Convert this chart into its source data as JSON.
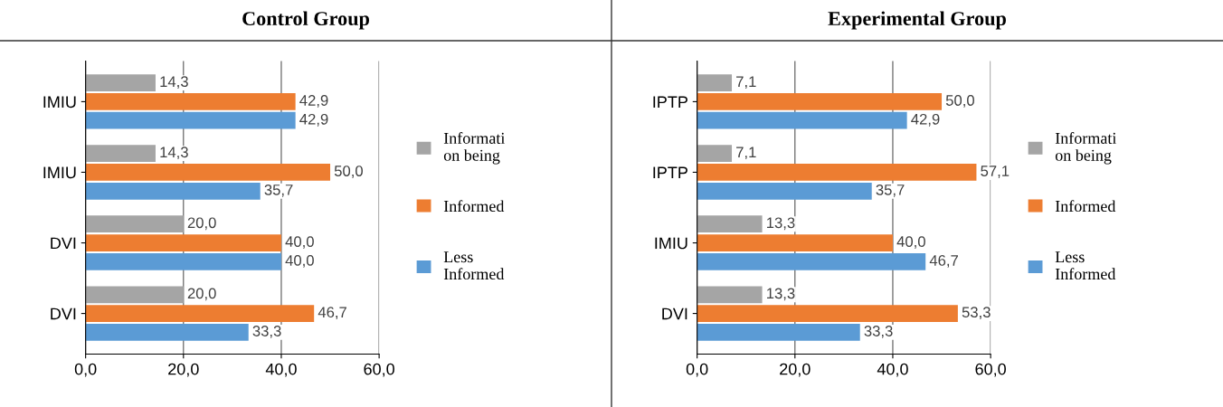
{
  "chart_data": [
    {
      "type": "bar",
      "orientation": "horizontal",
      "title": "Control Group",
      "categories": [
        "IMIU",
        "IMIU",
        "DVI",
        "DVI"
      ],
      "series": [
        {
          "name": "Informati\non being",
          "color": "#a5a5a5",
          "values": [
            14.3,
            14.3,
            20.0,
            20.0
          ],
          "value_labels": [
            "14,3",
            "14,3",
            "20,0",
            "20,0"
          ]
        },
        {
          "name": "Informed",
          "color": "#ed7d31",
          "values": [
            42.9,
            50.0,
            40.0,
            46.7
          ],
          "value_labels": [
            "42,9",
            "50,0",
            "40,0",
            "46,7"
          ]
        },
        {
          "name": "Less\nInformed",
          "color": "#5b9bd5",
          "values": [
            42.9,
            35.7,
            40.0,
            33.3
          ],
          "value_labels": [
            "42,9",
            "35,7",
            "40,0",
            "33,3"
          ]
        }
      ],
      "xlim": [
        0,
        60
      ],
      "xticks": [
        {
          "value": 0,
          "label": "0,0"
        },
        {
          "value": 20,
          "label": "20,0"
        },
        {
          "value": 40,
          "label": "40,0"
        },
        {
          "value": 60,
          "label": "60,0"
        }
      ],
      "grid": "x",
      "legend": "right"
    },
    {
      "type": "bar",
      "orientation": "horizontal",
      "title": "Experimental Group",
      "categories": [
        "IPTP",
        "IPTP",
        "IMIU",
        "DVI"
      ],
      "series": [
        {
          "name": "Informati\non being",
          "color": "#a5a5a5",
          "values": [
            7.1,
            7.1,
            13.3,
            13.3
          ],
          "value_labels": [
            "7,1",
            "7,1",
            "13,3",
            "13,3"
          ]
        },
        {
          "name": "Informed",
          "color": "#ed7d31",
          "values": [
            50.0,
            57.1,
            40.0,
            53.3
          ],
          "value_labels": [
            "50,0",
            "57,1",
            "40,0",
            "53,3"
          ]
        },
        {
          "name": "Less\nInformed",
          "color": "#5b9bd5",
          "values": [
            42.9,
            35.7,
            46.7,
            33.3
          ],
          "value_labels": [
            "42,9",
            "35,7",
            "46,7",
            "33,3"
          ]
        }
      ],
      "xlim": [
        0,
        60
      ],
      "xticks": [
        {
          "value": 0,
          "label": "0,0"
        },
        {
          "value": 20,
          "label": "20,0"
        },
        {
          "value": 40,
          "label": "40,0"
        },
        {
          "value": 60,
          "label": "60,0"
        }
      ],
      "grid": "x",
      "legend": "right"
    }
  ]
}
